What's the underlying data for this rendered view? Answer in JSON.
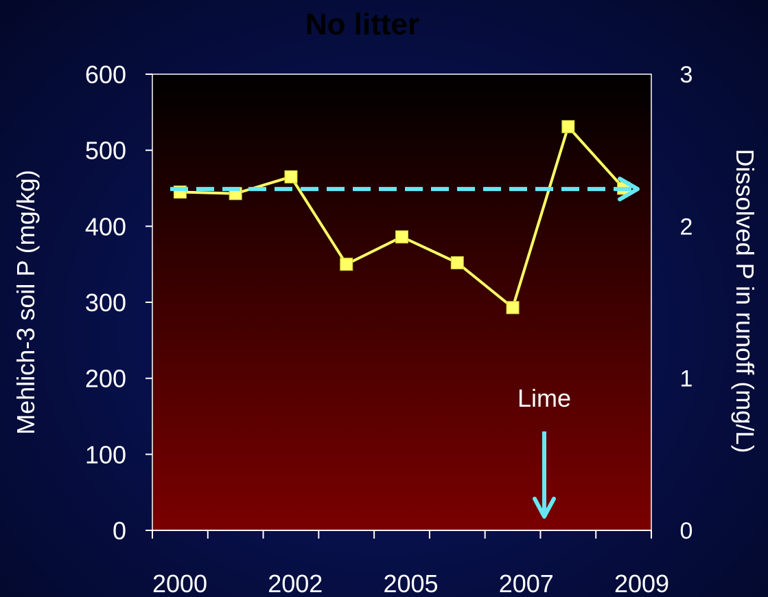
{
  "chart_data": {
    "type": "line",
    "title": "No litter",
    "ylabel": "Mehlich-3 soil P (mg/kg)",
    "ylabel_right": "Dissolved P in runoff (mg/L)",
    "ylim": [
      0,
      600
    ],
    "ylim_right": [
      0,
      3
    ],
    "yticks": [
      "0",
      "100",
      "200",
      "300",
      "400",
      "500",
      "600"
    ],
    "yticks_right": [
      "0",
      "1",
      "2",
      "3"
    ],
    "xtick_labels": [
      "2000",
      "2002",
      "2005",
      "2007",
      "2009"
    ],
    "series": [
      {
        "values": [
          445,
          443,
          465,
          350,
          386,
          352,
          293,
          531,
          450
        ],
        "color": "#ffff66"
      }
    ],
    "reference_line": {
      "value": 449,
      "color": "#66e8f2",
      "style": "dashed-arrow"
    },
    "annotation": {
      "text": "Lime",
      "color": "#66e8f2"
    },
    "plot_background": [
      "#000000",
      "#7a0000"
    ],
    "grid": false
  }
}
